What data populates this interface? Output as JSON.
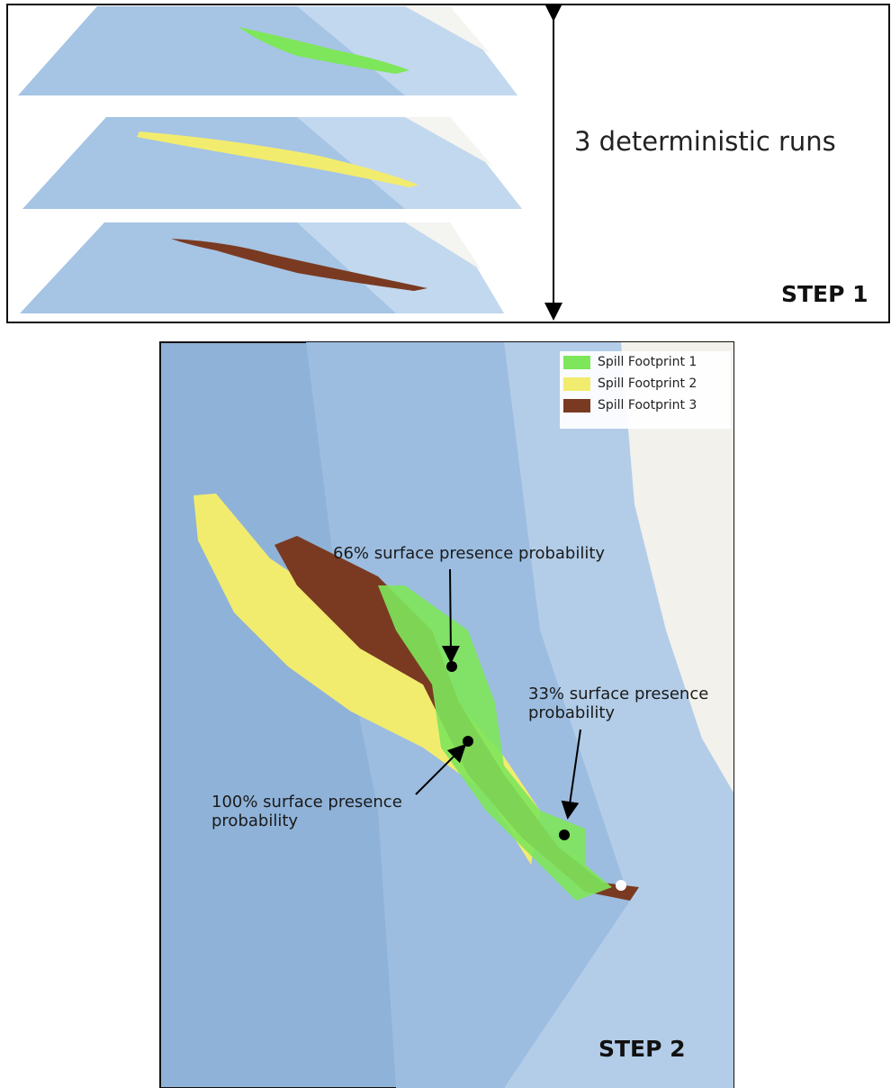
{
  "step1": {
    "label": "3 deterministic runs",
    "step": "STEP 1"
  },
  "step2": {
    "legend": [
      {
        "label": "Spill Footprint 1",
        "color": "#7ee65a"
      },
      {
        "label": "Spill Footprint 2",
        "color": "#f2ec6e"
      },
      {
        "label": "Spill Footprint 3",
        "color": "#7a3a22"
      }
    ],
    "annotations": [
      "66% surface presence probability",
      "33% surface presence probability",
      "100% surface presence probability"
    ],
    "step": "STEP 2"
  }
}
